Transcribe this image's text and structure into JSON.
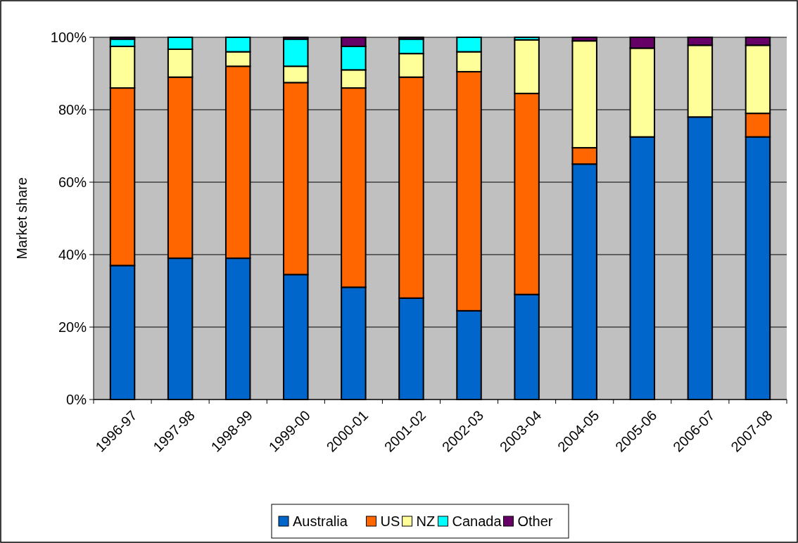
{
  "chart_data": {
    "type": "bar",
    "stacked": true,
    "ylabel": "Market share",
    "categories": [
      "1996-97",
      "1997-98",
      "1998-99",
      "1999-00",
      "2000-01",
      "2001-02",
      "2002-03",
      "2003-04",
      "2004-05",
      "2005-06",
      "2006-07",
      "2007-08"
    ],
    "series": [
      {
        "name": "Australia",
        "color": "#0066cc",
        "values": [
          37,
          39,
          39,
          34.5,
          31,
          28,
          24.5,
          29,
          65,
          72.5,
          78,
          72.5
        ]
      },
      {
        "name": "US",
        "color": "#ff6600",
        "values": [
          49,
          50,
          53,
          53,
          55,
          61,
          66,
          55.5,
          4.5,
          0,
          0,
          6.5
        ]
      },
      {
        "name": "NZ",
        "color": "#ffff99",
        "values": [
          11.5,
          7.7,
          4,
          4.5,
          5,
          6.5,
          5.5,
          14.8,
          29.5,
          24.5,
          19.8,
          18.8
        ]
      },
      {
        "name": "Canada",
        "color": "#00ffff",
        "values": [
          2,
          3.3,
          4,
          7.5,
          6.5,
          4,
          4,
          0.7,
          0,
          0,
          0,
          0
        ]
      },
      {
        "name": "Other",
        "color": "#660066",
        "values": [
          0.5,
          0,
          0,
          0.5,
          2.5,
          0.5,
          0,
          0,
          1,
          3,
          2.2,
          2.2
        ]
      }
    ],
    "ylim": [
      0,
      100
    ],
    "yticks": [
      {
        "value": 0,
        "label": "0%"
      },
      {
        "value": 20,
        "label": "20%"
      },
      {
        "value": 40,
        "label": "40%"
      },
      {
        "value": 60,
        "label": "60%"
      },
      {
        "value": 80,
        "label": "80%"
      },
      {
        "value": 100,
        "label": "100%"
      }
    ],
    "grid": "y",
    "legend": "bottom"
  }
}
